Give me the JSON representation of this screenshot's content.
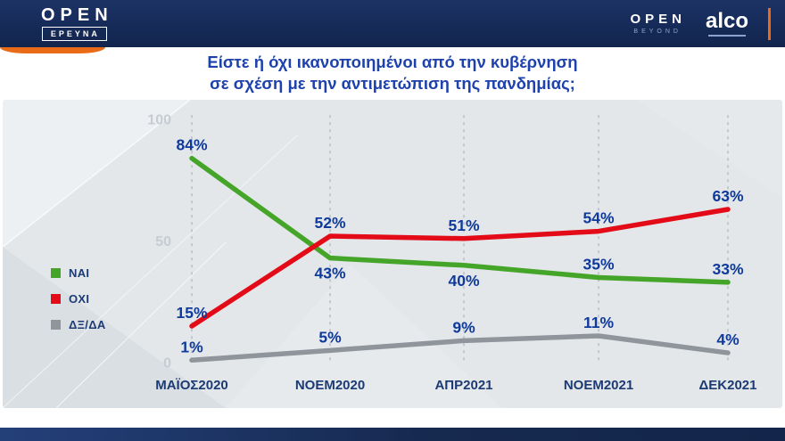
{
  "header": {
    "brand": "OPEN",
    "brand_sub": "ΕΡΕΥΝΑ",
    "right_brand": "OPEN",
    "right_brand_sub": "BEYOND",
    "partner_brand": "alco"
  },
  "title": {
    "line1": "Είστε ή όχι ικανοποιημένοι από την κυβέρνηση",
    "line2": "σε σχέση με την αντιμετώπιση της πανδημίας;"
  },
  "chart_data": {
    "type": "line",
    "title": "Είστε ή όχι ικανοποιημένοι από την κυβέρνηση σε σχέση με την αντιμετώπιση της πανδημίας;",
    "categories": [
      "ΜΑΪΟΣ2020",
      "ΝΟΕΜ2020",
      "ΑΠΡ2021",
      "ΝΟΕΜ2021",
      "ΔΕΚ2021"
    ],
    "series": [
      {
        "name": "ΝΑΙ",
        "color": "#45a529",
        "values": [
          84,
          43,
          40,
          35,
          33
        ],
        "labels": [
          "84%",
          "43%",
          "40%",
          "35%",
          "33%"
        ]
      },
      {
        "name": "ΟΧΙ",
        "color": "#e30b17",
        "values": [
          15,
          52,
          51,
          54,
          63
        ],
        "labels": [
          "15%",
          "52%",
          "51%",
          "54%",
          "63%"
        ]
      },
      {
        "name": "ΔΞ/ΔΑ",
        "color": "#8f959b",
        "values": [
          1,
          5,
          9,
          11,
          4
        ],
        "labels": [
          "1%",
          "5%",
          "9%",
          "11%",
          "4%"
        ]
      }
    ],
    "yticks": [
      100,
      50,
      0
    ],
    "ylim": [
      0,
      100
    ],
    "grid": "vertical-dashed",
    "legend_position": "left"
  },
  "colors": {
    "header_bg": "#152a57",
    "accent_orange": "#e96b17",
    "title_blue": "#1e42ad",
    "data_label_blue": "#0f3a9b",
    "panel_bg": "#e3e7ea"
  }
}
